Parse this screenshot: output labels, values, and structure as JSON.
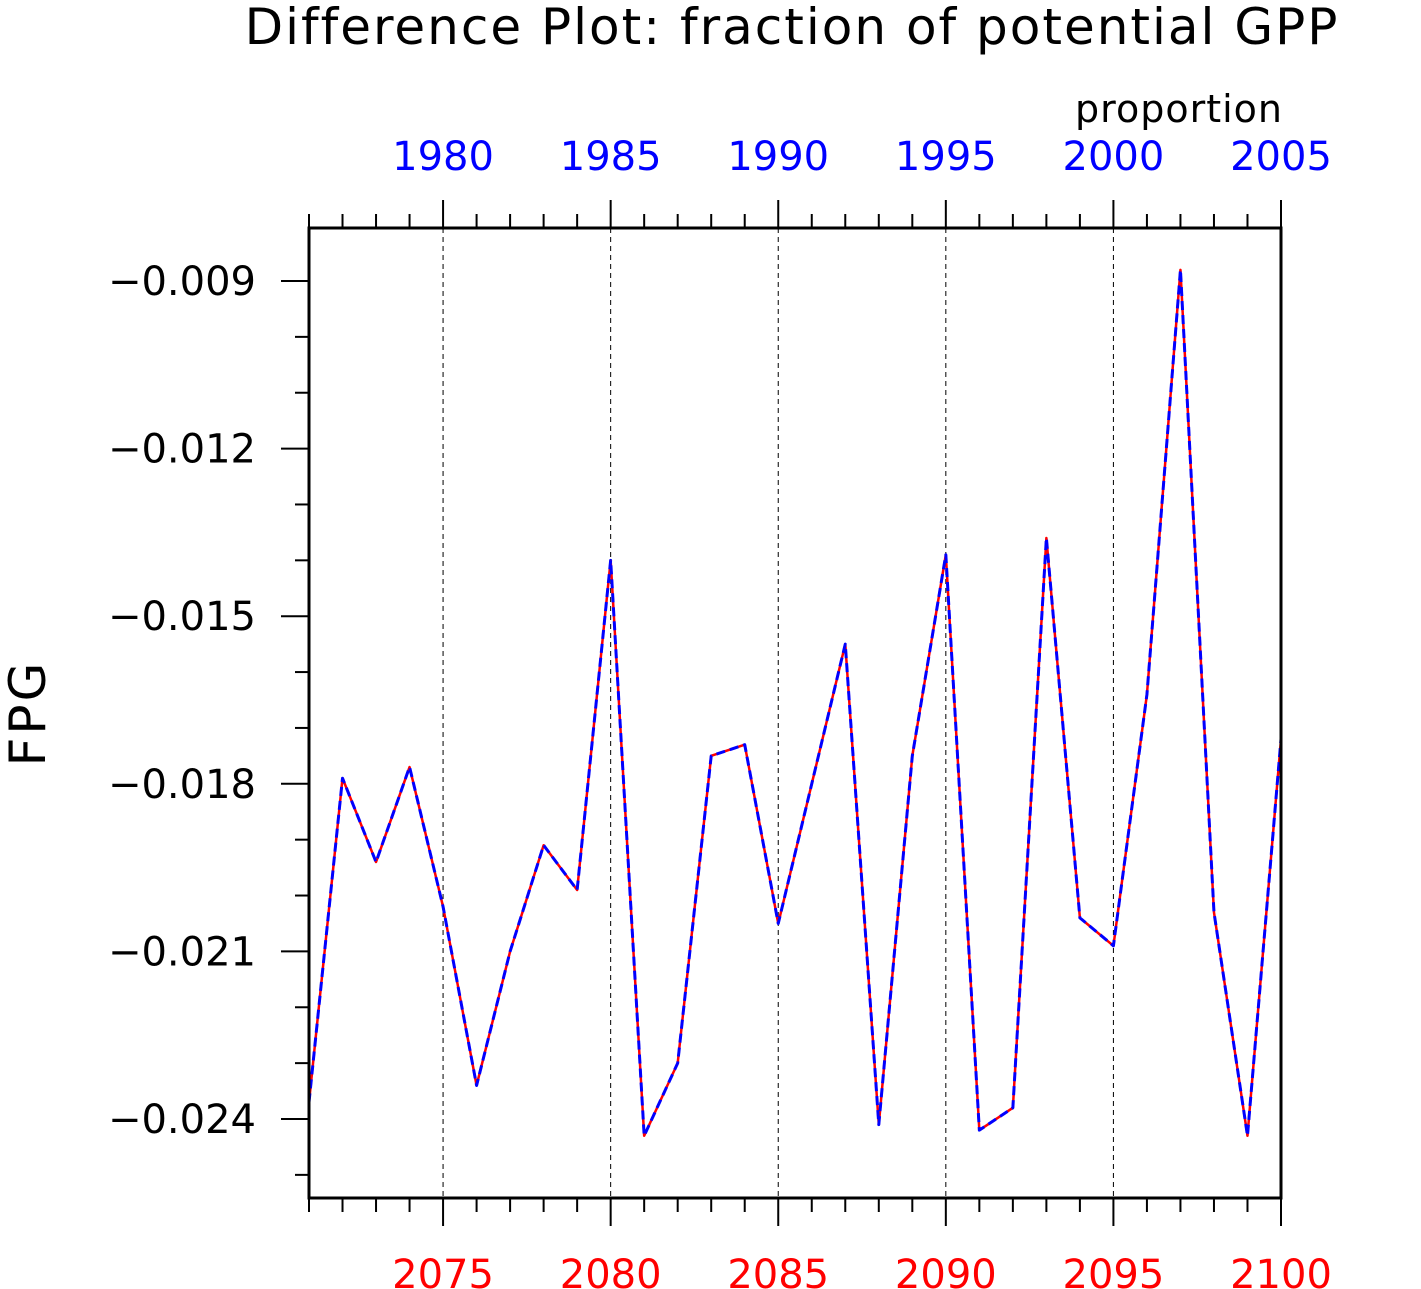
{
  "chart_data": {
    "type": "line",
    "title": "Difference Plot: fraction of potential GPP",
    "units": "proportion",
    "ylabel": "FPG",
    "ylim": [
      -0.025,
      -0.008
    ],
    "yticks": [
      -0.009,
      -0.012,
      -0.015,
      -0.018,
      -0.021,
      -0.024
    ],
    "ytick_labels": [
      "−0.009",
      "−0.012",
      "−0.015",
      "−0.018",
      "−0.021",
      "−0.024"
    ],
    "bottom_axis": {
      "range": [
        2071,
        2100
      ],
      "ticks": [
        2075,
        2080,
        2085,
        2090,
        2095,
        2100
      ],
      "color": "#ff0000"
    },
    "top_axis": {
      "range": [
        1976,
        2005
      ],
      "ticks": [
        1980,
        1985,
        1990,
        1995,
        2000,
        2005
      ],
      "color": "#0000ff"
    },
    "grid": "vertical dashed",
    "x": [
      2071,
      2072,
      2073,
      2074,
      2075,
      2076,
      2077,
      2078,
      2079,
      2080,
      2081,
      2082,
      2083,
      2084,
      2085,
      2086,
      2087,
      2088,
      2089,
      2090,
      2091,
      2092,
      2093,
      2094,
      2095,
      2096,
      2097,
      2098,
      2099,
      2100
    ],
    "series": [
      {
        "color": "#ff0000",
        "style": "solid",
        "values": [
          -0.0237,
          -0.0179,
          -0.0194,
          -0.0177,
          -0.0202,
          -0.0234,
          -0.021,
          -0.0191,
          -0.0199,
          -0.014,
          -0.0243,
          -0.023,
          -0.0175,
          -0.0173,
          -0.0205,
          -0.018,
          -0.0155,
          -0.0241,
          -0.0175,
          -0.0139,
          -0.0242,
          -0.0238,
          -0.0136,
          -0.0204,
          -0.0209,
          -0.0164,
          -0.0088,
          -0.0203,
          -0.0243,
          -0.0172
        ]
      },
      {
        "color": "#0000ff",
        "style": "dashed",
        "values": [
          -0.0237,
          -0.0179,
          -0.0194,
          -0.0177,
          -0.0202,
          -0.0234,
          -0.021,
          -0.0191,
          -0.0199,
          -0.014,
          -0.0243,
          -0.023,
          -0.0175,
          -0.0173,
          -0.0205,
          -0.018,
          -0.0155,
          -0.0241,
          -0.0175,
          -0.0139,
          -0.0242,
          -0.0238,
          -0.0136,
          -0.0204,
          -0.0209,
          -0.0164,
          -0.0088,
          -0.0203,
          -0.0243,
          -0.0172
        ]
      }
    ]
  }
}
